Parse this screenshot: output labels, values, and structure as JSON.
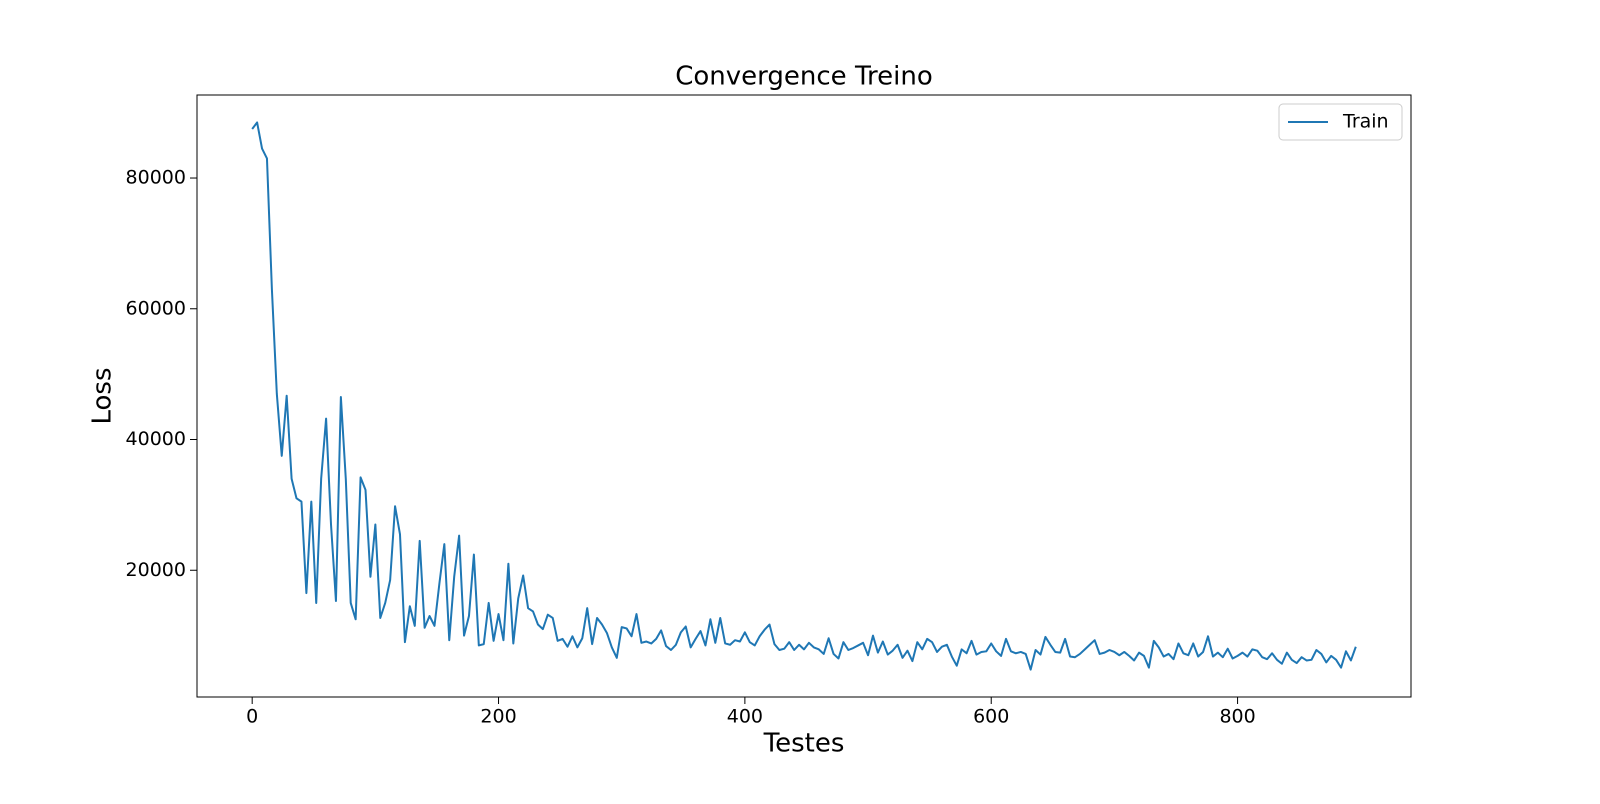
{
  "chart_data": {
    "type": "line",
    "title": "Convergence Treino",
    "xlabel": "Testes",
    "ylabel": "Loss",
    "legend": "upper right",
    "xlim": [
      -44.8,
      940.8
    ],
    "ylim": [
      611,
      92700
    ],
    "xticks": [
      0,
      200,
      400,
      600,
      800
    ],
    "yticks": [
      20000,
      40000,
      60000,
      80000
    ],
    "x": [
      0,
      4,
      8,
      12,
      16,
      20,
      24,
      28,
      32,
      36,
      40,
      44,
      48,
      52,
      56,
      60,
      64,
      68,
      72,
      76,
      80,
      84,
      88,
      92,
      96,
      100,
      104,
      108,
      112,
      116,
      120,
      124,
      128,
      132,
      136,
      140,
      144,
      148,
      152,
      156,
      160,
      164,
      168,
      172,
      176,
      180,
      184,
      188,
      192,
      196,
      200,
      204,
      208,
      212,
      216,
      220,
      224,
      228,
      232,
      236,
      240,
      244,
      248,
      252,
      256,
      260,
      264,
      268,
      272,
      276,
      280,
      284,
      288,
      292,
      296,
      300,
      304,
      308,
      312,
      316,
      320,
      324,
      328,
      332,
      336,
      340,
      344,
      348,
      352,
      356,
      360,
      364,
      368,
      372,
      376,
      380,
      384,
      388,
      392,
      396,
      400,
      404,
      408,
      412,
      416,
      420,
      424,
      428,
      432,
      436,
      440,
      444,
      448,
      452,
      456,
      460,
      464,
      468,
      472,
      476,
      480,
      484,
      488,
      492,
      496,
      500,
      504,
      508,
      512,
      516,
      520,
      524,
      528,
      532,
      536,
      540,
      544,
      548,
      552,
      556,
      560,
      564,
      568,
      572,
      576,
      580,
      584,
      588,
      592,
      596,
      600,
      604,
      608,
      612,
      616,
      620,
      624,
      628,
      632,
      636,
      640,
      644,
      648,
      652,
      656,
      660,
      664,
      668,
      672,
      676,
      680,
      684,
      688,
      692,
      696,
      700,
      704,
      708,
      712,
      716,
      720,
      724,
      728,
      732,
      736,
      740,
      744,
      748,
      752,
      756,
      760,
      764,
      768,
      772,
      776,
      780,
      784,
      788,
      792,
      796,
      800,
      804,
      808,
      812,
      816,
      820,
      824,
      828,
      832,
      836,
      840,
      844,
      848,
      852,
      856,
      860,
      864,
      868,
      872,
      876,
      880,
      884,
      888,
      892,
      896
    ],
    "series": [
      {
        "name": "Train",
        "color": "#1f77b4",
        "values": [
          87500,
          88500,
          84500,
          83000,
          63000,
          47000,
          37500,
          46700,
          34000,
          31000,
          30500,
          16500,
          30500,
          15000,
          34000,
          43200,
          27000,
          15300,
          46500,
          34000,
          15000,
          12500,
          34200,
          32300,
          19000,
          27000,
          12700,
          15000,
          18500,
          29800,
          25500,
          9000,
          14500,
          11500,
          24500,
          11200,
          13000,
          11500,
          18000,
          24000,
          9300,
          19000,
          25300,
          10000,
          13000,
          22400,
          8500,
          8700,
          15000,
          9200,
          13300,
          9300,
          21000,
          8800,
          15700,
          19200,
          14200,
          13700,
          11700,
          11000,
          13200,
          12700,
          9200,
          9500,
          8300,
          9900,
          8200,
          9600,
          14200,
          8700,
          12700,
          11700,
          10400,
          8200,
          6600,
          11300,
          11100,
          9900,
          13300,
          8900,
          9100,
          8800,
          9500,
          10800,
          8400,
          7800,
          8600,
          10500,
          11400,
          8200,
          9500,
          10700,
          8500,
          12500,
          8900,
          12700,
          8800,
          8600,
          9300,
          9100,
          10500,
          9000,
          8500,
          9900,
          10900,
          11700,
          8700,
          7800,
          8000,
          9000,
          7800,
          8600,
          7900,
          8900,
          8200,
          7900,
          7200,
          9600,
          7200,
          6500,
          9000,
          7800,
          8100,
          8500,
          8900,
          7000,
          10000,
          7400,
          9100,
          7100,
          7700,
          8600,
          6600,
          7700,
          6100,
          9000,
          7900,
          9500,
          9000,
          7500,
          8300,
          8600,
          6800,
          5400,
          7900,
          7300,
          9200,
          7100,
          7500,
          7600,
          8800,
          7600,
          6900,
          9500,
          7600,
          7300,
          7500,
          7200,
          4800,
          7800,
          7100,
          9800,
          8600,
          7500,
          7400,
          9500,
          6800,
          6700,
          7200,
          7900,
          8600,
          9300,
          7200,
          7400,
          7800,
          7500,
          7000,
          7500,
          6900,
          6200,
          7400,
          6900,
          5100,
          9200,
          8200,
          6800,
          7200,
          6400,
          8800,
          7300,
          7000,
          8800,
          6800,
          7500,
          9900,
          6800,
          7400,
          6700,
          8000,
          6500,
          6900,
          7400,
          6800,
          7900,
          7700,
          6700,
          6400,
          7300,
          6300,
          5700,
          7400,
          6300,
          5800,
          6700,
          6200,
          6300,
          7800,
          7200,
          5900,
          6900,
          6300,
          5100,
          7600,
          6200,
          8300
        ]
      }
    ]
  }
}
